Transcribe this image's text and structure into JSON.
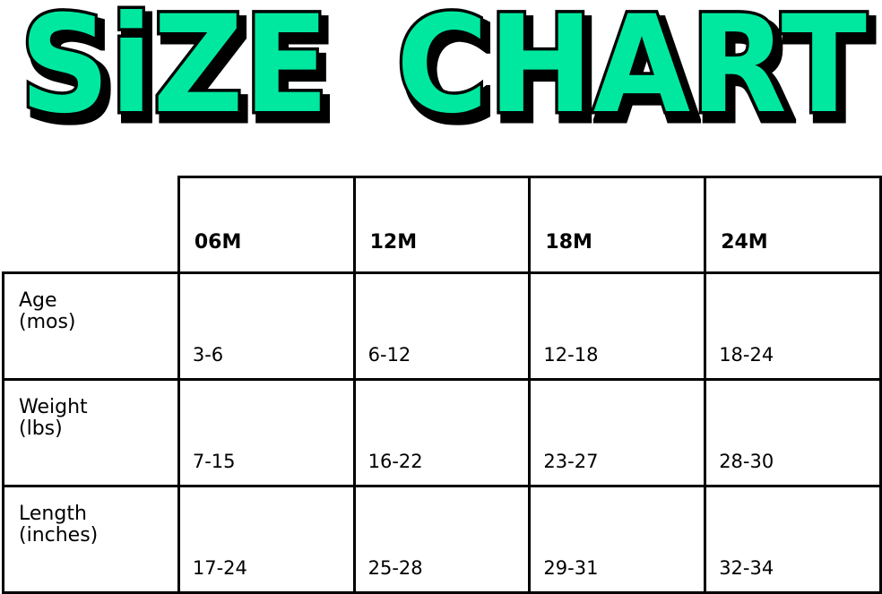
{
  "title": {
    "word1": "SiZE",
    "word2": "CHART",
    "fill_color": "#00E8A0",
    "outline_color": "#000000"
  },
  "table": {
    "columns": [
      "06M",
      "12M",
      "18M",
      "24M"
    ],
    "rows": [
      {
        "label": [
          "Age",
          "(mos)"
        ],
        "values": [
          "3-6",
          "6-12",
          "12-18",
          "18-24"
        ]
      },
      {
        "label": [
          "Weight",
          "(lbs)"
        ],
        "values": [
          "7-15",
          "16-22",
          "23-27",
          "28-30"
        ]
      },
      {
        "label": [
          "Length",
          "(inches)"
        ],
        "values": [
          "17-24",
          "25-28",
          "29-31",
          "32-34"
        ]
      }
    ]
  }
}
